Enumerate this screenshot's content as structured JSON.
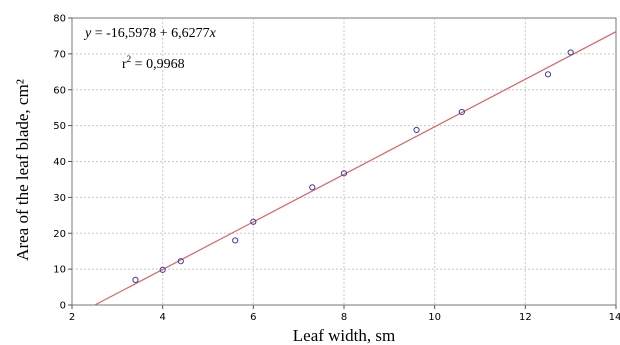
{
  "chart_data": {
    "type": "scatter",
    "xlabel": "Leaf width, sm",
    "ylabel": "Area of the leaf blade, cm²",
    "xlim": [
      2,
      14
    ],
    "ylim": [
      0,
      80
    ],
    "xticks": [
      "2",
      "4",
      "6",
      "8",
      "10",
      "12",
      "14"
    ],
    "yticks": [
      "0",
      "10",
      "20",
      "30",
      "40",
      "50",
      "60",
      "70",
      "80"
    ],
    "grid": true,
    "series": [
      {
        "points": [
          {
            "x": 3.4,
            "y": 7.0
          },
          {
            "x": 4.0,
            "y": 9.8
          },
          {
            "x": 4.4,
            "y": 12.2
          },
          {
            "x": 5.6,
            "y": 18.0
          },
          {
            "x": 6.0,
            "y": 23.2
          },
          {
            "x": 7.3,
            "y": 32.8
          },
          {
            "x": 8.0,
            "y": 36.7
          },
          {
            "x": 9.6,
            "y": 48.8
          },
          {
            "x": 10.6,
            "y": 53.8
          },
          {
            "x": 12.5,
            "y": 64.3
          },
          {
            "x": 13.0,
            "y": 70.4
          }
        ],
        "color": "#3a3aa8"
      }
    ],
    "fit_line": {
      "intercept": -16.5978,
      "slope": 6.6277,
      "color": "#e06060"
    },
    "annotations": {
      "equation_lhs": "y",
      "equation_rhs": " = -16,5978 + 6,6277",
      "equation_var": "x",
      "r_label": "r",
      "r_exp": "2",
      "r_value": " = 0,9968"
    }
  }
}
